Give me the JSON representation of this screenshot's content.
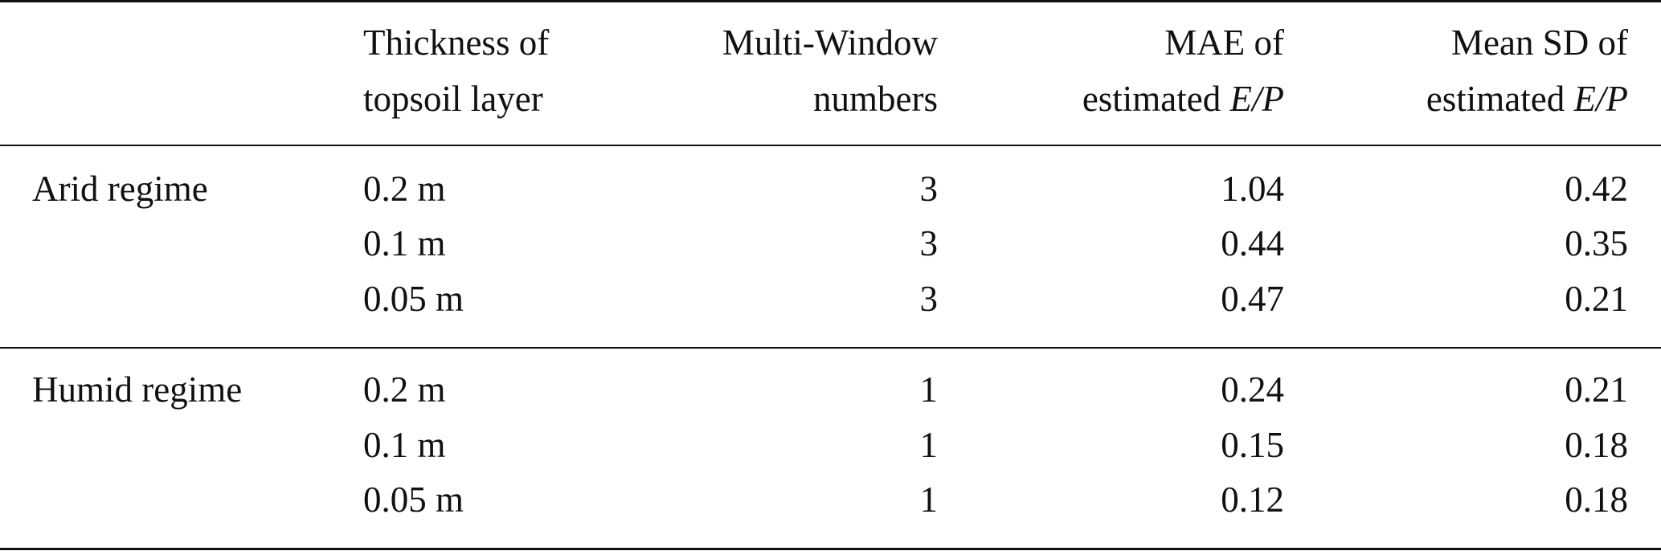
{
  "table": {
    "headers": [
      {
        "line1": "",
        "line2": ""
      },
      {
        "line1": "Thickness of",
        "line2": "topsoil layer"
      },
      {
        "line1": "Multi-Window",
        "line2": "numbers"
      },
      {
        "line1": "MAE of",
        "line2": "estimated",
        "math": "E/P"
      },
      {
        "line1": "Mean SD of",
        "line2": "estimated",
        "math": "E/P"
      }
    ],
    "groups": [
      {
        "label": "Arid regime",
        "rows": [
          {
            "thickness": "0.2 m",
            "windows": "3",
            "mae": "1.04",
            "sd": "0.42"
          },
          {
            "thickness": "0.1 m",
            "windows": "3",
            "mae": "0.44",
            "sd": "0.35"
          },
          {
            "thickness": "0.05 m",
            "windows": "3",
            "mae": "0.47",
            "sd": "0.21"
          }
        ]
      },
      {
        "label": "Humid regime",
        "rows": [
          {
            "thickness": "0.2 m",
            "windows": "1",
            "mae": "0.24",
            "sd": "0.21"
          },
          {
            "thickness": "0.1 m",
            "windows": "1",
            "mae": "0.15",
            "sd": "0.18"
          },
          {
            "thickness": "0.05 m",
            "windows": "1",
            "mae": "0.12",
            "sd": "0.18"
          }
        ]
      }
    ]
  }
}
